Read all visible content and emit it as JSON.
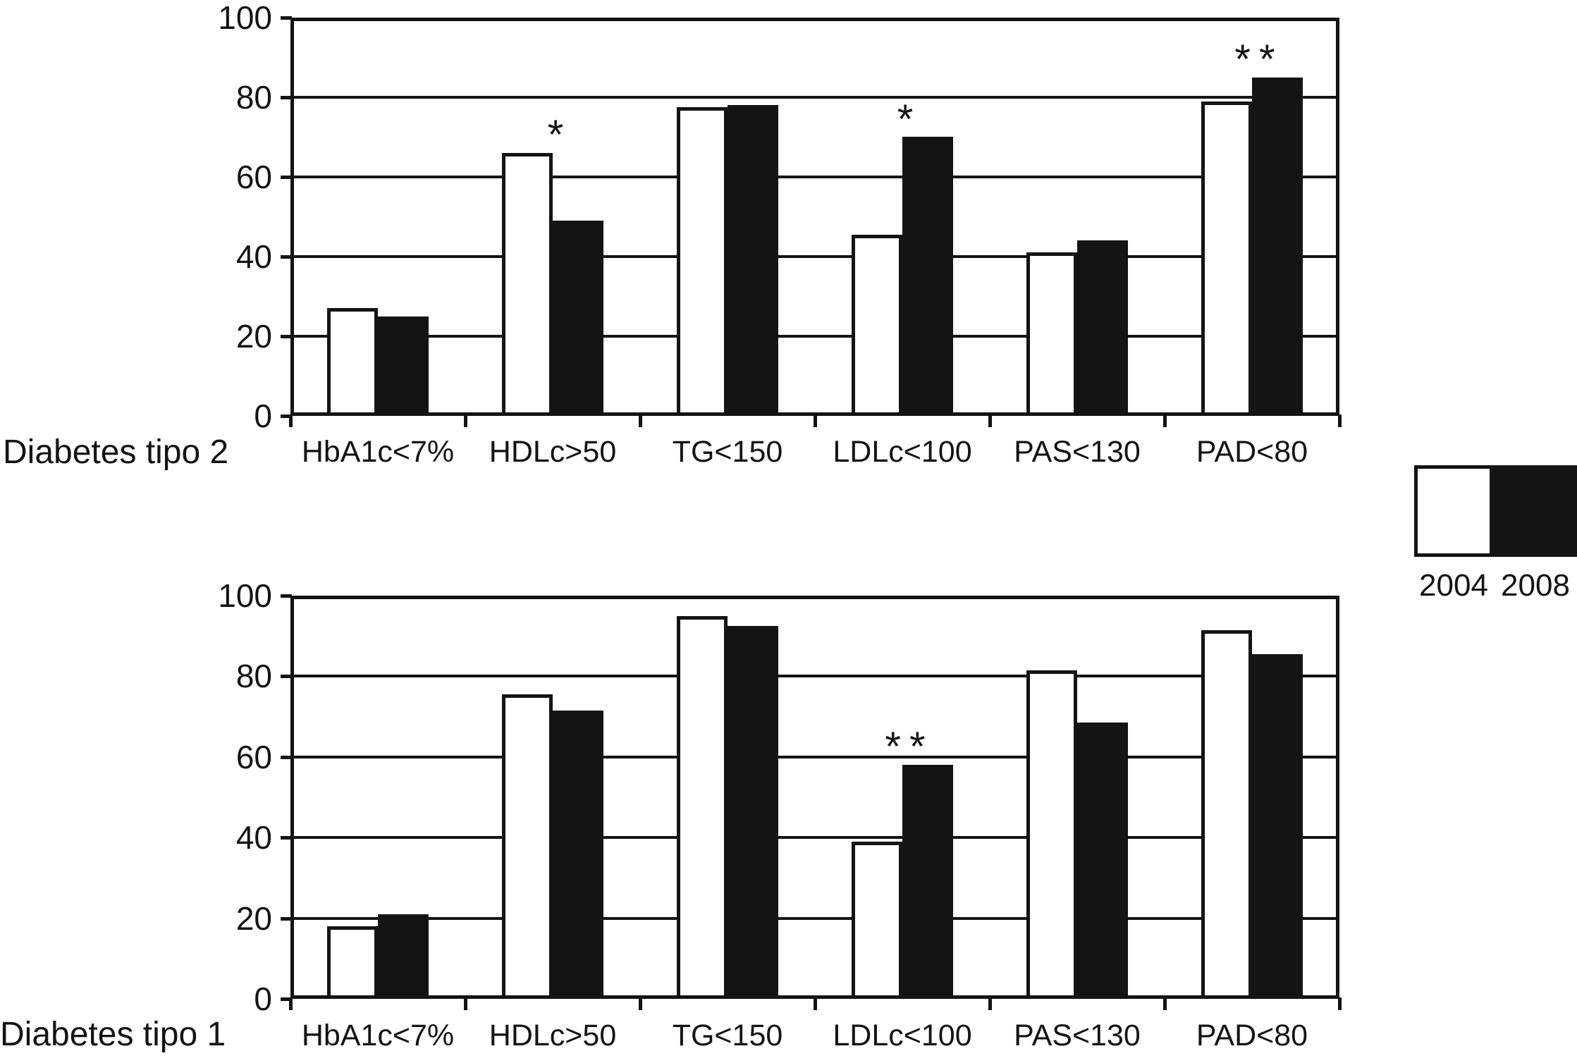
{
  "figure": {
    "background": "#ffffff"
  },
  "legend": {
    "position": "right",
    "items": [
      {
        "label": "2004",
        "color": "#ffffff"
      },
      {
        "label": "2008",
        "color": "#141414"
      }
    ]
  },
  "chart_data": [
    {
      "type": "bar",
      "title": "Diabetes tipo 2",
      "categories": [
        "HbA1c<7%",
        "HDLc>50",
        "TG<150",
        "LDLc<100",
        "PAS<130",
        "PAD<80"
      ],
      "series": [
        {
          "name": "2004",
          "color": "#ffffff",
          "values": [
            27,
            66,
            77.5,
            45.5,
            41,
            79
          ]
        },
        {
          "name": "2008",
          "color": "#141414",
          "values": [
            25,
            49,
            78,
            70,
            44,
            85
          ]
        }
      ],
      "annotations": [
        {
          "category_index": 1,
          "text": "*"
        },
        {
          "category_index": 3,
          "text": "*"
        },
        {
          "category_index": 5,
          "text": "**"
        }
      ],
      "xlabel": "",
      "ylabel": "",
      "ylim": [
        0,
        100
      ],
      "yticks": [
        0,
        20,
        40,
        60,
        80,
        100
      ],
      "grid": true
    },
    {
      "type": "bar",
      "title": "Diabetes tipo 1",
      "categories": [
        "HbA1c<7%",
        "HDLc>50",
        "TG<150",
        "LDLc<100",
        "PAS<130",
        "PAD<80"
      ],
      "series": [
        {
          "name": "2004",
          "color": "#ffffff",
          "values": [
            18,
            75.5,
            95,
            39,
            81.5,
            91.5
          ]
        },
        {
          "name": "2008",
          "color": "#141414",
          "values": [
            21,
            71.5,
            92.5,
            58,
            68.5,
            85.5
          ]
        }
      ],
      "annotations": [
        {
          "category_index": 3,
          "text": "**"
        }
      ],
      "xlabel": "",
      "ylabel": "",
      "ylim": [
        0,
        100
      ],
      "yticks": [
        0,
        20,
        40,
        60,
        80,
        100
      ],
      "grid": true
    }
  ]
}
